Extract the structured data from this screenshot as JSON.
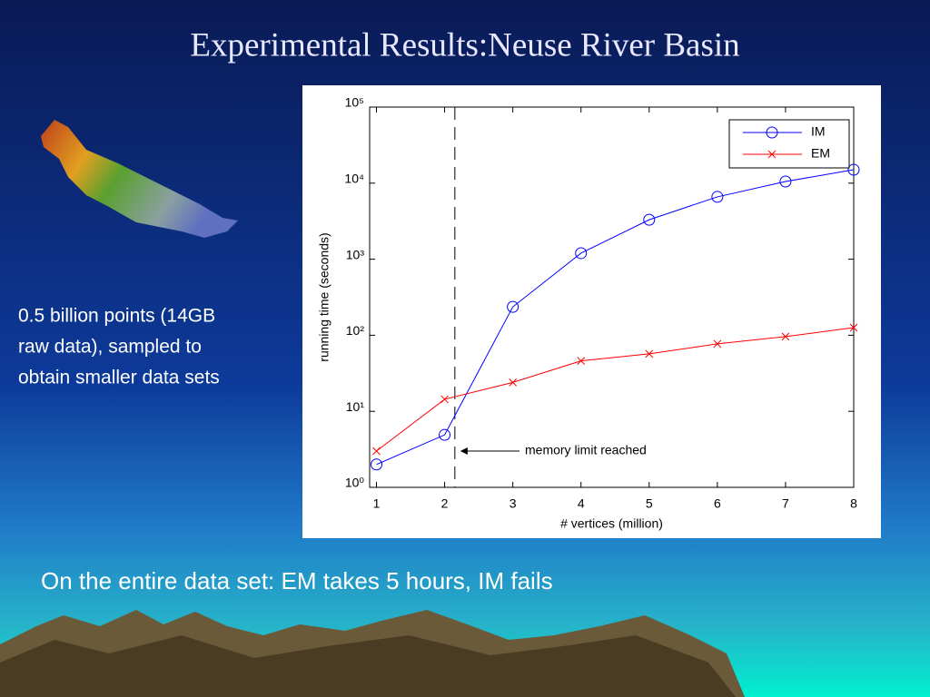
{
  "slide": {
    "title": "Experimental Results:Neuse River Basin",
    "side_text": [
      "0.5 billion points (14GB",
      "raw data), sampled to",
      "obtain smaller data sets"
    ],
    "bottom_text": "On the entire  data set: EM takes 5 hours, IM fails"
  },
  "chart_data": {
    "type": "line",
    "x": [
      1,
      2,
      3,
      4,
      5,
      6,
      7,
      8
    ],
    "series": [
      {
        "name": "IM",
        "color": "#0000ff",
        "marker": "circle",
        "values": [
          2,
          4.9,
          236,
          1200,
          3300,
          6600,
          10500,
          15000
        ]
      },
      {
        "name": "EM",
        "color": "#ff0000",
        "marker": "x",
        "values": [
          3,
          14.4,
          24,
          46,
          57,
          77,
          96,
          126
        ]
      }
    ],
    "xlabel": "# vertices (million)",
    "ylabel": "running time (seconds)",
    "xlim": [
      0.9,
      8
    ],
    "xticks": [
      1,
      2,
      3,
      4,
      5,
      6,
      7,
      8
    ],
    "ylim": [
      1,
      100000
    ],
    "log_y": true,
    "yticks": [
      {
        "value": 1,
        "label": "10⁰"
      },
      {
        "value": 10,
        "label": "10¹"
      },
      {
        "value": 100,
        "label": "10²"
      },
      {
        "value": 1000,
        "label": "10³"
      },
      {
        "value": 10000,
        "label": "10⁴"
      },
      {
        "value": 100000,
        "label": "10⁵"
      }
    ],
    "legend": "upper right",
    "annotation": {
      "text": "memory limit reached",
      "x": 2.15
    }
  }
}
